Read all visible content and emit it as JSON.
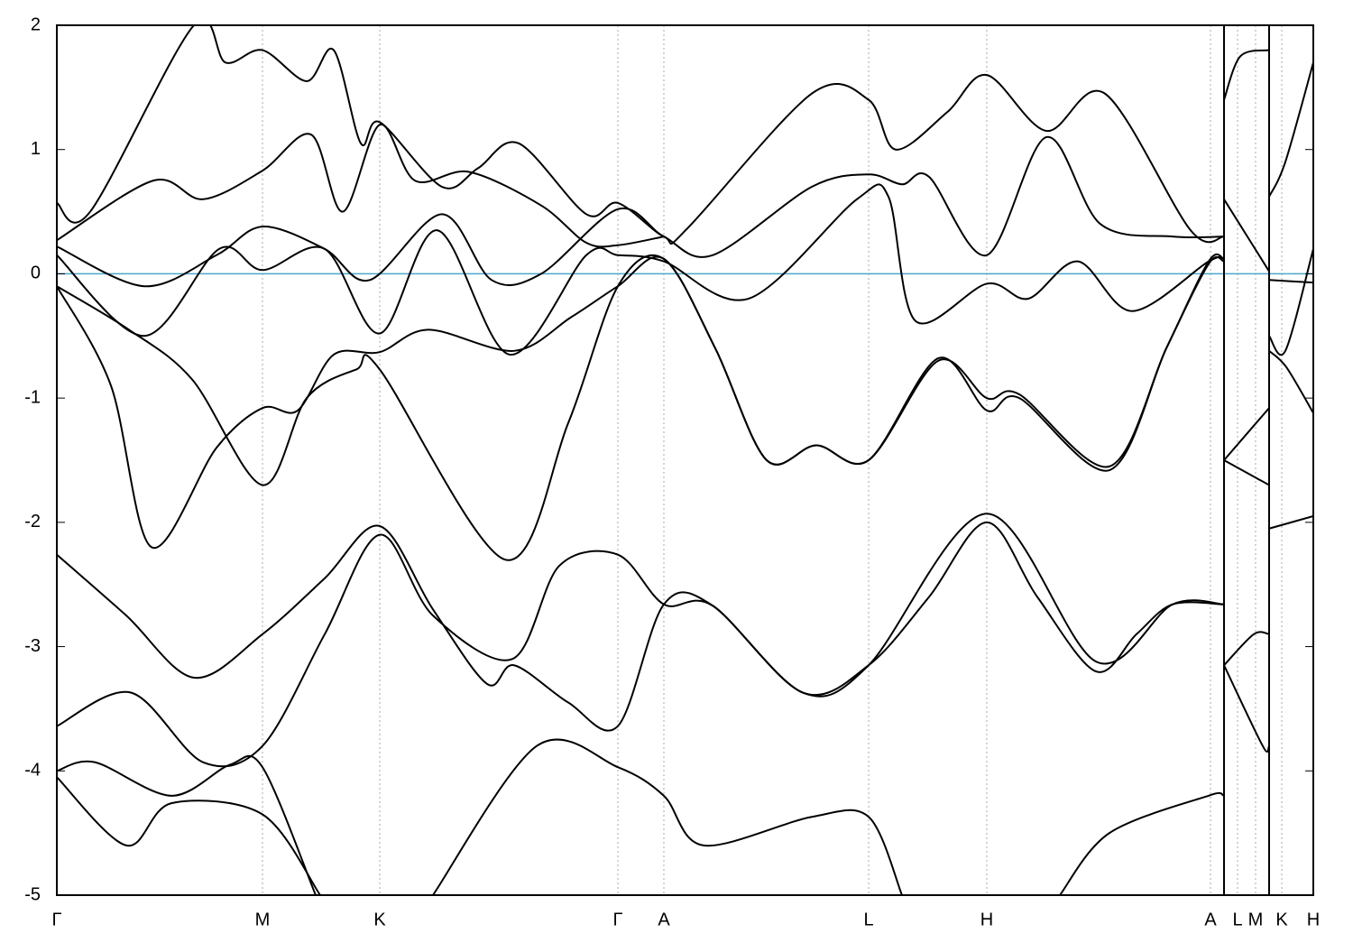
{
  "chart_data": {
    "type": "line",
    "line_color": "#000000",
    "xlim": [
      0,
      13.93
    ],
    "ylim": [
      -5,
      2
    ],
    "yticks": [
      -5,
      -4,
      -3,
      -2,
      -1,
      0,
      1,
      2
    ],
    "xticks": [
      {
        "value": 0,
        "label": "Γ"
      },
      {
        "value": 2.28,
        "label": "M"
      },
      {
        "value": 3.58,
        "label": "K"
      },
      {
        "value": 6.22,
        "label": "Γ"
      },
      {
        "value": 6.73,
        "label": "A"
      },
      {
        "value": 9.0,
        "label": "L"
      },
      {
        "value": 10.31,
        "label": "H"
      },
      {
        "value": 12.79,
        "label": "A"
      },
      {
        "value": 13.09,
        "label": "L"
      },
      {
        "value": 13.29,
        "label": "M"
      },
      {
        "value": 13.58,
        "label": "K"
      },
      {
        "value": 13.93,
        "label": "H"
      }
    ],
    "grid": true,
    "breaks": [
      12.94,
      13.44
    ],
    "fermi_level": 0,
    "fermi_color": "#4aa8c8",
    "series": [
      {
        "x": [
          0,
          0.77,
          1.52,
          2.28,
          2.97,
          3.58,
          4.17,
          4.77,
          5.07,
          5.67,
          6.22,
          6.73,
          7.27,
          8.27,
          9.0,
          9.67,
          10.31,
          10.87,
          11.52,
          11.97,
          12.37,
          12.94
        ],
        "values": [
          -2.26,
          -2.75,
          -3.25,
          -2.9,
          -2.45,
          -2.03,
          -2.7,
          -3.3,
          -3.15,
          -3.45,
          -3.64,
          -2.66,
          -2.67,
          -3.37,
          -3.15,
          -2.6,
          -2.0,
          -2.6,
          -3.2,
          -2.9,
          -2.66,
          -2.66
        ]
      },
      {
        "x": [
          0,
          0.82,
          1.62,
          2.28,
          2.97,
          3.58,
          4.17,
          5.05,
          5.57,
          6.22,
          6.73,
          7.27,
          8.27,
          9.0,
          10.31,
          11.52,
          12.37,
          12.94
        ],
        "values": [
          -3.64,
          -3.37,
          -3.93,
          -3.8,
          -2.9,
          -2.1,
          -2.75,
          -3.1,
          -2.35,
          -2.26,
          -2.66,
          -2.67,
          -3.37,
          -3.15,
          -1.93,
          -3.12,
          -2.66,
          -2.66
        ]
      },
      {
        "x": [
          0,
          0.6,
          1.05,
          1.77,
          2.28,
          2.67,
          3.07,
          3.58,
          4.12,
          5.07,
          5.7,
          6.22,
          6.73,
          7.3,
          7.87,
          8.42,
          9.0,
          9.77,
          10.31,
          10.67,
          11.67,
          12.3,
          12.77,
          12.94
        ],
        "values": [
          -0.1,
          -0.9,
          -2.2,
          -1.4,
          -1.08,
          -1.1,
          -0.65,
          -0.63,
          -0.45,
          -0.62,
          -0.35,
          -0.1,
          0.12,
          -0.6,
          -1.5,
          -1.38,
          -1.5,
          -0.7,
          -1.0,
          -0.97,
          -1.55,
          -0.6,
          0.1,
          0.12
        ]
      },
      {
        "x": [
          0,
          0.8,
          1.5,
          2.28,
          2.77,
          3.32,
          3.58,
          4.97,
          5.67,
          6.22,
          6.73,
          7.3,
          7.87,
          8.42,
          9.0,
          9.77,
          10.31,
          10.67,
          11.67,
          12.3,
          12.77,
          12.94
        ],
        "values": [
          -0.1,
          -0.45,
          -0.85,
          -1.7,
          -1.0,
          -0.77,
          -0.77,
          -2.3,
          -1.2,
          -0.1,
          0.12,
          -0.6,
          -1.5,
          -1.38,
          -1.5,
          -0.68,
          -1.1,
          -1.0,
          -1.58,
          -0.6,
          0.08,
          0.1
        ]
      },
      {
        "x": [
          0,
          0.97,
          1.8,
          2.28,
          2.97,
          3.58,
          4.22,
          5.02,
          5.87,
          6.22,
          6.73,
          7.67,
          8.87,
          9.22,
          9.52,
          10.31,
          10.77,
          11.32,
          11.92,
          12.77,
          12.94
        ],
        "values": [
          0.15,
          -0.5,
          0.2,
          0.03,
          0.2,
          -0.48,
          0.35,
          -0.65,
          0.15,
          0.15,
          0.1,
          -0.2,
          0.6,
          0.62,
          -0.38,
          -0.08,
          -0.2,
          0.1,
          -0.3,
          0.1,
          0.12
        ]
      },
      {
        "x": [
          0,
          0.97,
          1.77,
          2.28,
          2.97,
          3.47,
          4.27,
          4.82,
          5.37,
          6.22,
          6.73,
          7.27,
          8.37,
          9.0,
          9.37,
          9.67,
          10.31,
          10.97,
          11.57,
          12.37,
          12.94
        ],
        "values": [
          0.22,
          -0.1,
          0.15,
          0.38,
          0.2,
          -0.05,
          0.48,
          -0.05,
          0.0,
          0.52,
          0.3,
          0.15,
          0.7,
          0.8,
          0.72,
          0.78,
          0.15,
          1.1,
          0.4,
          0.3,
          0.3
        ]
      },
      {
        "x": [
          0,
          0.37,
          1.52,
          1.87,
          2.28,
          2.77,
          3.07,
          3.37,
          3.58,
          4.27,
          4.67,
          5.12,
          5.87,
          6.22,
          6.73,
          6.97,
          8.37,
          9.0,
          9.3,
          9.87,
          10.31,
          10.97,
          11.62,
          12.57,
          12.94
        ],
        "values": [
          0.57,
          0.5,
          2.0,
          1.7,
          1.8,
          1.55,
          1.8,
          1.05,
          1.22,
          0.7,
          0.85,
          1.05,
          0.48,
          0.57,
          0.3,
          0.35,
          1.45,
          1.4,
          1.0,
          1.3,
          1.6,
          1.15,
          1.45,
          0.35,
          0.3
        ]
      },
      {
        "x": [
          0,
          1.07,
          1.62,
          2.28,
          2.82,
          3.17,
          3.58,
          3.97,
          4.57,
          5.37,
          5.87,
          6.22,
          6.73
        ],
        "values": [
          0.27,
          0.75,
          0.6,
          0.83,
          1.12,
          0.5,
          1.2,
          0.75,
          0.82,
          0.55,
          0.25,
          0.23,
          0.3
        ]
      },
      {
        "x": [
          0,
          0.42,
          1.27,
          1.92,
          2.28,
          2.87
        ],
        "values": [
          -4.0,
          -3.93,
          -4.2,
          -3.95,
          -3.97,
          -5.0
        ]
      },
      {
        "x": [
          0,
          0.77,
          1.27,
          2.28,
          2.92
        ],
        "values": [
          -4.05,
          -4.6,
          -4.26,
          -4.35,
          -5.0
        ]
      },
      {
        "x": [
          4.17,
          5.32,
          6.22,
          6.73,
          7.17,
          8.37,
          9.0,
          9.37
        ],
        "values": [
          -5.0,
          -3.8,
          -3.97,
          -4.2,
          -4.6,
          -4.37,
          -4.37,
          -5.0
        ]
      },
      {
        "x": [
          11.12,
          11.67,
          12.77,
          12.94
        ],
        "values": [
          -5.0,
          -4.5,
          -4.2,
          -4.2
        ]
      },
      {
        "x": [
          12.94,
          13.44
        ],
        "values": [
          -1.5,
          -1.08
        ]
      },
      {
        "x": [
          12.94,
          13.44
        ],
        "values": [
          -1.5,
          -1.7
        ]
      },
      {
        "x": [
          12.94,
          13.27,
          13.44
        ],
        "values": [
          -3.15,
          -2.9,
          -2.9
        ]
      },
      {
        "x": [
          12.94,
          13.37,
          13.44
        ],
        "values": [
          -3.15,
          -3.8,
          -3.8
        ]
      },
      {
        "x": [
          12.94,
          13.12,
          13.44
        ],
        "values": [
          1.4,
          1.75,
          1.8
        ]
      },
      {
        "x": [
          12.94,
          13.44
        ],
        "values": [
          0.6,
          0.02
        ]
      },
      {
        "x": [
          13.44,
          13.93
        ],
        "values": [
          -2.05,
          -1.95
        ]
      },
      {
        "x": [
          13.44,
          13.63,
          13.93
        ],
        "values": [
          -0.62,
          -0.75,
          -1.12
        ]
      },
      {
        "x": [
          13.44,
          13.93
        ],
        "values": [
          -0.05,
          -0.07
        ]
      },
      {
        "x": [
          13.44,
          13.62,
          13.93
        ],
        "values": [
          -0.5,
          -0.62,
          0.2
        ]
      },
      {
        "x": [
          13.44,
          13.62,
          13.93
        ],
        "values": [
          0.62,
          0.9,
          1.7
        ]
      }
    ]
  }
}
